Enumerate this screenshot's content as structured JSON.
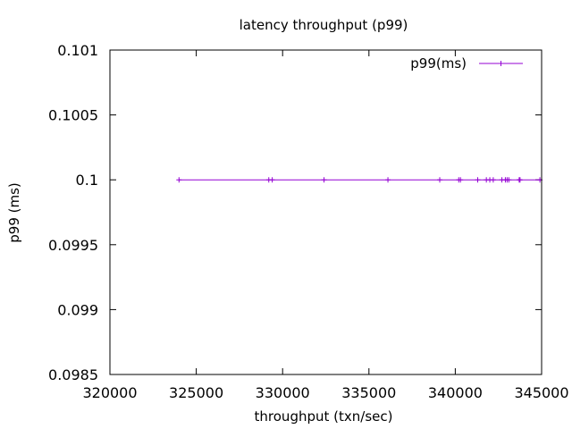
{
  "chart_data": {
    "type": "line",
    "title": "latency throughput (p99)",
    "xlabel": "throughput (txn/sec)",
    "ylabel": "p99 (ms)",
    "xlim": [
      320000,
      345000
    ],
    "ylim": [
      0.0985,
      0.101
    ],
    "xticks": [
      {
        "value": 320000,
        "label": "320000"
      },
      {
        "value": 325000,
        "label": "325000"
      },
      {
        "value": 330000,
        "label": "330000"
      },
      {
        "value": 335000,
        "label": "335000"
      },
      {
        "value": 340000,
        "label": "340000"
      },
      {
        "value": 345000,
        "label": "345000"
      }
    ],
    "yticks": [
      {
        "value": 0.0985,
        "label": "0.0985"
      },
      {
        "value": 0.099,
        "label": "0.099"
      },
      {
        "value": 0.0995,
        "label": "0.0995"
      },
      {
        "value": 0.1,
        "label": "0.1"
      },
      {
        "value": 0.1005,
        "label": "0.1005"
      },
      {
        "value": 0.101,
        "label": "0.101"
      }
    ],
    "grid": false,
    "legend": "top-right",
    "series": [
      {
        "name": "p99(ms)",
        "color": "#9400d3",
        "marker": "plus",
        "points": [
          {
            "x": 324000,
            "y": 0.1
          },
          {
            "x": 329200,
            "y": 0.1
          },
          {
            "x": 329400,
            "y": 0.1
          },
          {
            "x": 332400,
            "y": 0.1
          },
          {
            "x": 336100,
            "y": 0.1
          },
          {
            "x": 339100,
            "y": 0.1
          },
          {
            "x": 340200,
            "y": 0.1
          },
          {
            "x": 340300,
            "y": 0.1
          },
          {
            "x": 341300,
            "y": 0.1
          },
          {
            "x": 341800,
            "y": 0.1
          },
          {
            "x": 342000,
            "y": 0.1
          },
          {
            "x": 342200,
            "y": 0.1
          },
          {
            "x": 342700,
            "y": 0.1
          },
          {
            "x": 342900,
            "y": 0.1
          },
          {
            "x": 343000,
            "y": 0.1
          },
          {
            "x": 343100,
            "y": 0.1
          },
          {
            "x": 343700,
            "y": 0.1
          },
          {
            "x": 343750,
            "y": 0.1
          },
          {
            "x": 344900,
            "y": 0.1
          }
        ]
      }
    ]
  }
}
